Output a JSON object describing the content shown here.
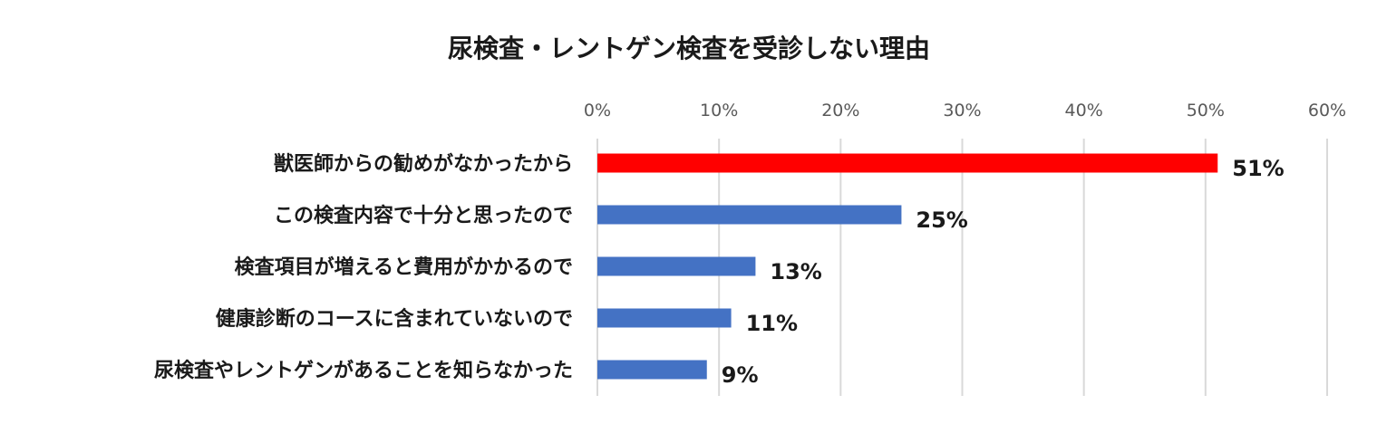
{
  "chart_data": {
    "type": "bar",
    "orientation": "horizontal",
    "title": "尿検査・レントゲン検査を受診しない理由",
    "categories": [
      "獣医師からの勧めがなかったから",
      "この検査内容で十分と思ったので",
      "検査項目が増えると費用がかかるので",
      "健康診断のコースに含まれていないので",
      "尿検査やレントゲンがあることを知らなかった"
    ],
    "values": [
      51,
      25,
      13,
      11,
      9
    ],
    "data_labels": [
      "51%",
      "25%",
      "13%",
      "11%",
      "9%"
    ],
    "bar_colors": [
      "#ff0000",
      "#4472c4",
      "#4472c4",
      "#4472c4",
      "#4472c4"
    ],
    "xlim": [
      0,
      60
    ],
    "x_ticks": [
      0,
      10,
      20,
      30,
      40,
      50,
      60
    ],
    "x_tick_labels": [
      "0%",
      "10%",
      "20%",
      "30%",
      "40%",
      "50%",
      "60%"
    ],
    "x_axis_position": "top",
    "grid": true,
    "legend": "none",
    "xlabel": "",
    "ylabel": ""
  }
}
